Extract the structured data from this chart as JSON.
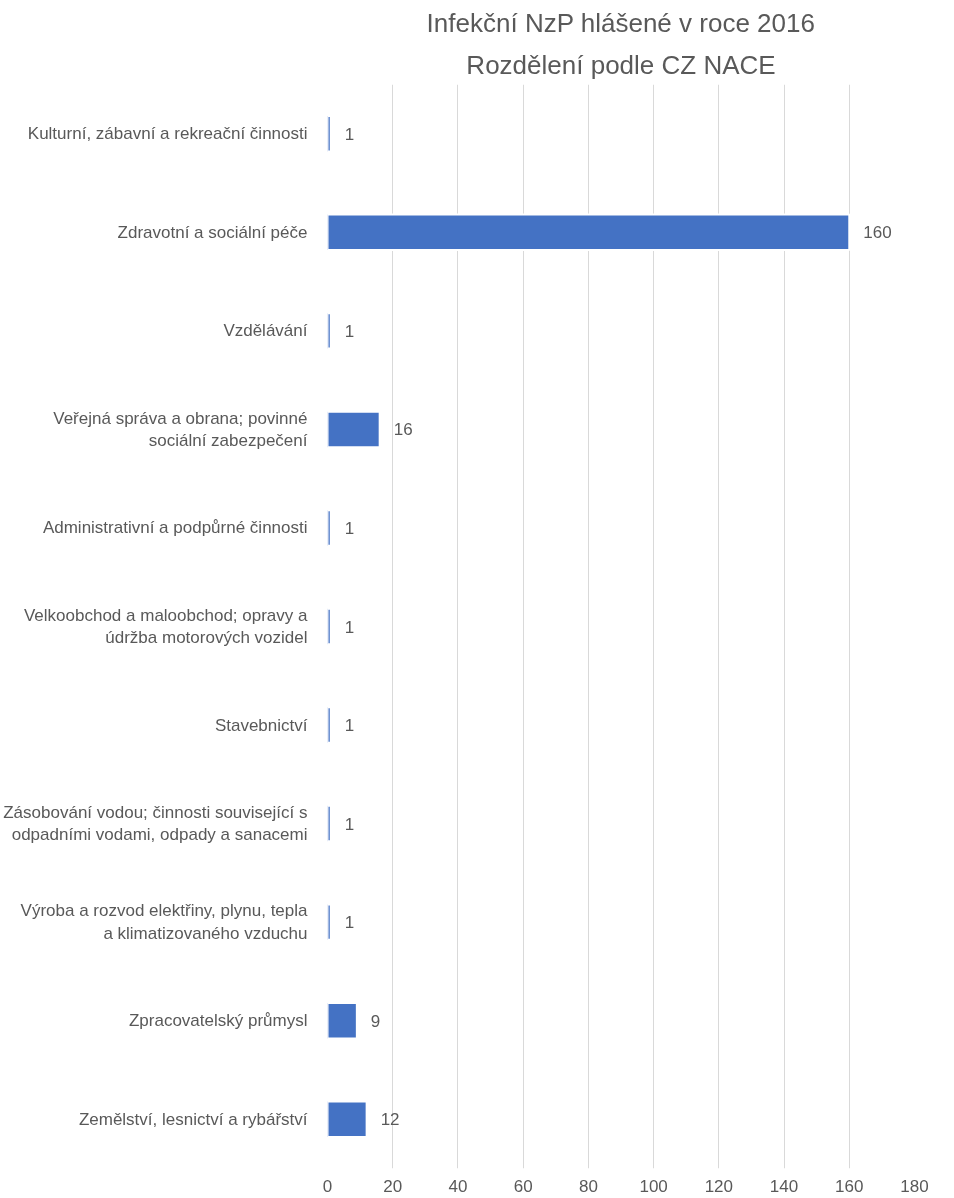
{
  "chart_data": {
    "type": "bar",
    "orientation": "horizontal",
    "title": "Infekční NzP hlášené v roce 2016",
    "subtitle": "Rozdělení podle CZ NACE",
    "categories": [
      "Kulturní, zábavní a rekreační činnosti",
      "Zdravotní a sociální péče",
      "Vzdělávání",
      "Veřejná správa a obrana; povinné sociální zabezpečení",
      "Administrativní a podpůrné činnosti",
      "Velkoobchod a maloobchod; opravy a údržba motorových vozidel",
      "Stavebnictví",
      "Zásobování vodou; činnosti související s odpadními vodami, odpady a sanacemi",
      "Výroba a rozvod elektřiny, plynu, tepla a klimatizovaného vzduchu",
      "Zpracovatelský průmysl",
      "Zemělství, lesnictví a rybářství"
    ],
    "values": [
      1,
      160,
      1,
      16,
      1,
      1,
      1,
      1,
      1,
      9,
      12
    ],
    "color": "#4472c4",
    "xlim": [
      0,
      180
    ],
    "xticks": [
      0,
      20,
      40,
      60,
      80,
      100,
      120,
      140,
      160,
      180
    ],
    "grid": "x",
    "data_labels": true
  }
}
